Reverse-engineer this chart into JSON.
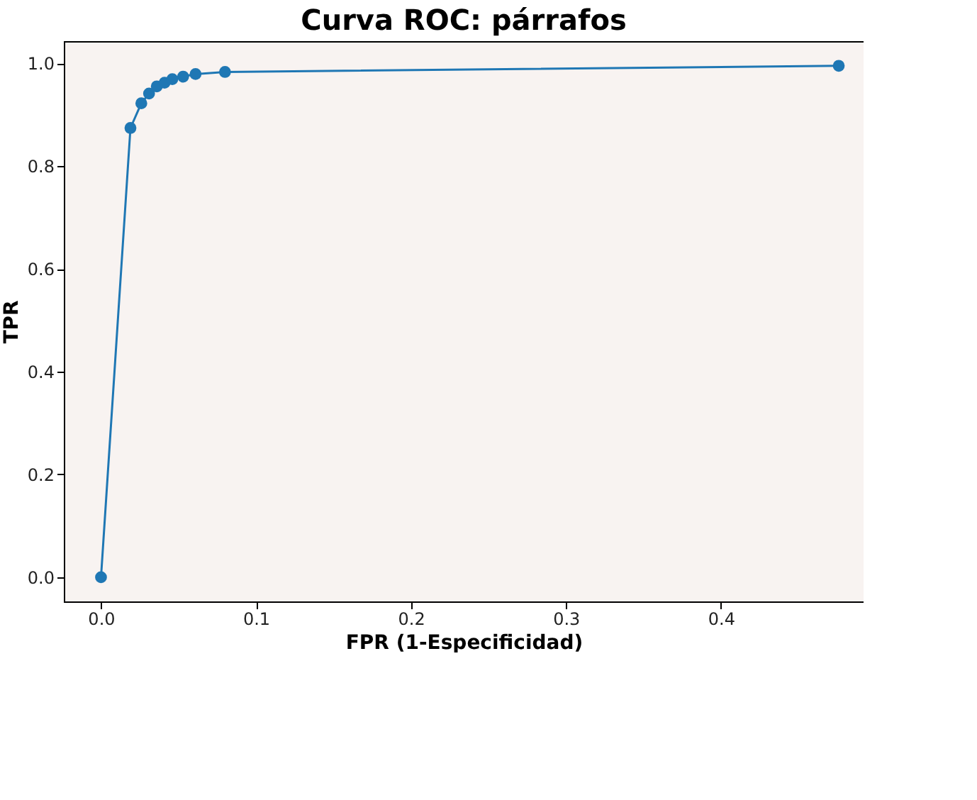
{
  "chart_data": {
    "type": "line",
    "title": "Curva ROC: párrafos",
    "xlabel": "FPR (1-Especificidad)",
    "ylabel": "TPR",
    "x": [
      0,
      0.019,
      0.026,
      0.031,
      0.036,
      0.041,
      0.046,
      0.053,
      0.061,
      0.08,
      0.476
    ],
    "series": [
      {
        "color": "#1f77b4",
        "values": [
          0,
          0.874,
          0.922,
          0.941,
          0.955,
          0.962,
          0.969,
          0.974,
          0.979,
          0.983,
          0.995
        ]
      }
    ],
    "xlim": [
      -0.024,
      0.492
    ],
    "ylim": [
      -0.047,
      1.043
    ],
    "xticks": [
      {
        "value": 0,
        "label": "0.0"
      },
      0.1,
      0.2,
      0.3,
      0.4
    ],
    "yticks": [
      {
        "value": 0,
        "label": "0.0"
      },
      0.2,
      0.4,
      0.6,
      0.8,
      {
        "value": 1,
        "label": "1.0"
      }
    ],
    "marker": "circle",
    "line_style": "solid",
    "grid": false
  }
}
